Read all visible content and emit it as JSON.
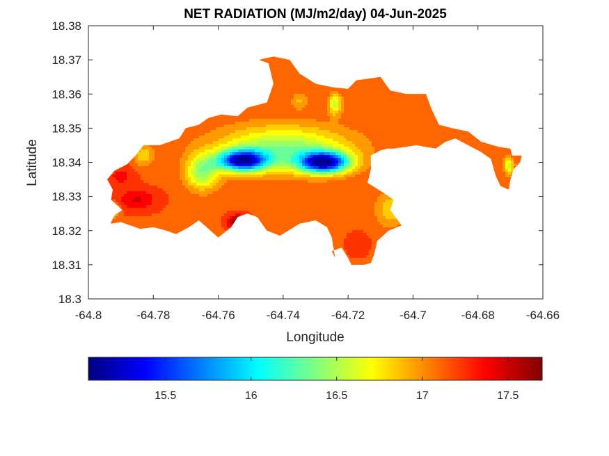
{
  "chart_data": {
    "type": "heatmap",
    "title": "NET RADIATION (MJ/m2/day) 04-Jun-2025",
    "xlabel": "Longitude",
    "ylabel": "Latitude",
    "xlim": [
      -64.8,
      -64.66
    ],
    "ylim": [
      18.3,
      18.38
    ],
    "x_ticks": [
      -64.8,
      -64.78,
      -64.76,
      -64.74,
      -64.72,
      -64.7,
      -64.68,
      -64.66
    ],
    "x_tick_labels": [
      "-64.8",
      "-64.78",
      "-64.76",
      "-64.74",
      "-64.72",
      "-64.7",
      "-64.68",
      "-64.66"
    ],
    "y_ticks": [
      18.3,
      18.31,
      18.32,
      18.33,
      18.34,
      18.35,
      18.36,
      18.37,
      18.38
    ],
    "y_tick_labels": [
      "18.3",
      "18.31",
      "18.32",
      "18.33",
      "18.34",
      "18.35",
      "18.36",
      "18.37",
      "18.38"
    ],
    "grid": false,
    "colormap": "jet",
    "colorbar": {
      "orientation": "horizontal",
      "placement": "below",
      "range": [
        15.05,
        17.7
      ],
      "ticks": [
        15.5,
        16,
        16.5,
        17,
        17.5
      ],
      "tick_labels": [
        "15.5",
        "16",
        "16.5",
        "17",
        "17.5"
      ]
    },
    "field": {
      "background_value": 17.15,
      "lows": [
        {
          "lon": -64.7275,
          "lat": 18.34,
          "rx": 0.0075,
          "ry": 0.003,
          "amp": -1.95
        },
        {
          "lon": -64.7525,
          "lat": 18.3405,
          "rx": 0.0075,
          "ry": 0.003,
          "amp": -1.8
        },
        {
          "lon": -64.74,
          "lat": 18.344,
          "rx": 0.02,
          "ry": 0.0065,
          "amp": -0.75
        },
        {
          "lon": -64.765,
          "lat": 18.337,
          "rx": 0.005,
          "ry": 0.005,
          "amp": -0.7
        },
        {
          "lon": -64.724,
          "lat": 18.357,
          "rx": 0.002,
          "ry": 0.003,
          "amp": -0.6
        },
        {
          "lon": -64.6705,
          "lat": 18.339,
          "rx": 0.0015,
          "ry": 0.0025,
          "amp": -0.6
        },
        {
          "lon": -64.793,
          "lat": 18.326,
          "rx": 0.002,
          "ry": 0.002,
          "amp": -0.55
        },
        {
          "lon": -64.707,
          "lat": 18.326,
          "rx": 0.0045,
          "ry": 0.005,
          "amp": -0.35
        },
        {
          "lon": -64.783,
          "lat": 18.342,
          "rx": 0.003,
          "ry": 0.003,
          "amp": -0.35
        },
        {
          "lon": -64.735,
          "lat": 18.358,
          "rx": 0.0025,
          "ry": 0.0025,
          "amp": -0.25
        }
      ],
      "highs": [
        {
          "lon": -64.754,
          "lat": 18.3225,
          "rx": 0.003,
          "ry": 0.002,
          "amp": 0.55
        },
        {
          "lon": -64.785,
          "lat": 18.329,
          "rx": 0.006,
          "ry": 0.003,
          "amp": 0.3
        },
        {
          "lon": -64.79,
          "lat": 18.336,
          "rx": 0.004,
          "ry": 0.003,
          "amp": 0.2
        },
        {
          "lon": -64.717,
          "lat": 18.316,
          "rx": 0.003,
          "ry": 0.003,
          "amp": 0.15
        }
      ]
    },
    "land_mask": [
      [
        [
          -64.7932,
          18.322
        ],
        [
          -64.792,
          18.3245
        ],
        [
          -64.7895,
          18.326
        ],
        [
          -64.793,
          18.329
        ],
        [
          -64.7925,
          18.332
        ],
        [
          -64.7942,
          18.335
        ],
        [
          -64.792,
          18.3375
        ],
        [
          -64.788,
          18.3395
        ],
        [
          -64.785,
          18.3425
        ],
        [
          -64.783,
          18.345
        ],
        [
          -64.778,
          18.345
        ],
        [
          -64.772,
          18.347
        ],
        [
          -64.77,
          18.35
        ],
        [
          -64.766,
          18.351
        ],
        [
          -64.763,
          18.353
        ],
        [
          -64.759,
          18.354
        ],
        [
          -64.754,
          18.3535
        ],
        [
          -64.751,
          18.356
        ],
        [
          -64.745,
          18.3575
        ],
        [
          -64.743,
          18.363
        ],
        [
          -64.7445,
          18.369
        ],
        [
          -64.7475,
          18.37
        ],
        [
          -64.743,
          18.371
        ],
        [
          -64.738,
          18.37
        ],
        [
          -64.735,
          18.366
        ],
        [
          -64.73,
          18.363
        ],
        [
          -64.725,
          18.362
        ],
        [
          -64.72,
          18.3615
        ],
        [
          -64.7175,
          18.364
        ],
        [
          -64.71,
          18.365
        ],
        [
          -64.707,
          18.361
        ],
        [
          -64.702,
          18.36
        ],
        [
          -64.696,
          18.36
        ],
        [
          -64.6945,
          18.356
        ],
        [
          -64.692,
          18.351
        ],
        [
          -64.688,
          18.35
        ],
        [
          -64.683,
          18.349
        ],
        [
          -64.679,
          18.346
        ],
        [
          -64.6735,
          18.3445
        ],
        [
          -64.67,
          18.344
        ],
        [
          -64.6695,
          18.342
        ],
        [
          -64.6665,
          18.342
        ],
        [
          -64.667,
          18.34
        ],
        [
          -64.669,
          18.338
        ],
        [
          -64.67,
          18.335
        ],
        [
          -64.6705,
          18.332
        ],
        [
          -64.673,
          18.333
        ],
        [
          -64.6745,
          18.336
        ],
        [
          -64.676,
          18.341
        ],
        [
          -64.679,
          18.343
        ],
        [
          -64.683,
          18.345
        ],
        [
          -64.687,
          18.347
        ],
        [
          -64.69,
          18.346
        ],
        [
          -64.693,
          18.344
        ],
        [
          -64.699,
          18.345
        ],
        [
          -64.706,
          18.344
        ],
        [
          -64.708,
          18.344
        ],
        [
          -64.71,
          18.3435
        ],
        [
          -64.713,
          18.342
        ],
        [
          -64.713,
          18.338
        ],
        [
          -64.714,
          18.334
        ],
        [
          -64.709,
          18.331
        ],
        [
          -64.706,
          18.329
        ],
        [
          -64.707,
          18.326
        ],
        [
          -64.7035,
          18.3215
        ],
        [
          -64.7075,
          18.32
        ],
        [
          -64.711,
          18.317
        ],
        [
          -64.712,
          18.313
        ],
        [
          -64.713,
          18.3105
        ],
        [
          -64.715,
          18.31
        ],
        [
          -64.719,
          18.31
        ],
        [
          -64.72,
          18.312
        ],
        [
          -64.722,
          18.315
        ],
        [
          -64.725,
          18.314
        ],
        [
          -64.724,
          18.312
        ],
        [
          -64.725,
          18.318
        ],
        [
          -64.7265,
          18.321
        ],
        [
          -64.73,
          18.323
        ],
        [
          -64.735,
          18.322
        ],
        [
          -64.741,
          18.3185
        ],
        [
          -64.745,
          18.32
        ],
        [
          -64.748,
          18.324
        ],
        [
          -64.751,
          18.325
        ],
        [
          -64.754,
          18.324
        ],
        [
          -64.756,
          18.321
        ],
        [
          -64.76,
          18.318
        ],
        [
          -64.763,
          18.3205
        ],
        [
          -64.766,
          18.323
        ],
        [
          -64.769,
          18.321
        ],
        [
          -64.773,
          18.319
        ],
        [
          -64.776,
          18.32
        ],
        [
          -64.78,
          18.321
        ],
        [
          -64.784,
          18.3205
        ],
        [
          -64.787,
          18.3215
        ],
        [
          -64.79,
          18.3225
        ]
      ]
    ]
  }
}
